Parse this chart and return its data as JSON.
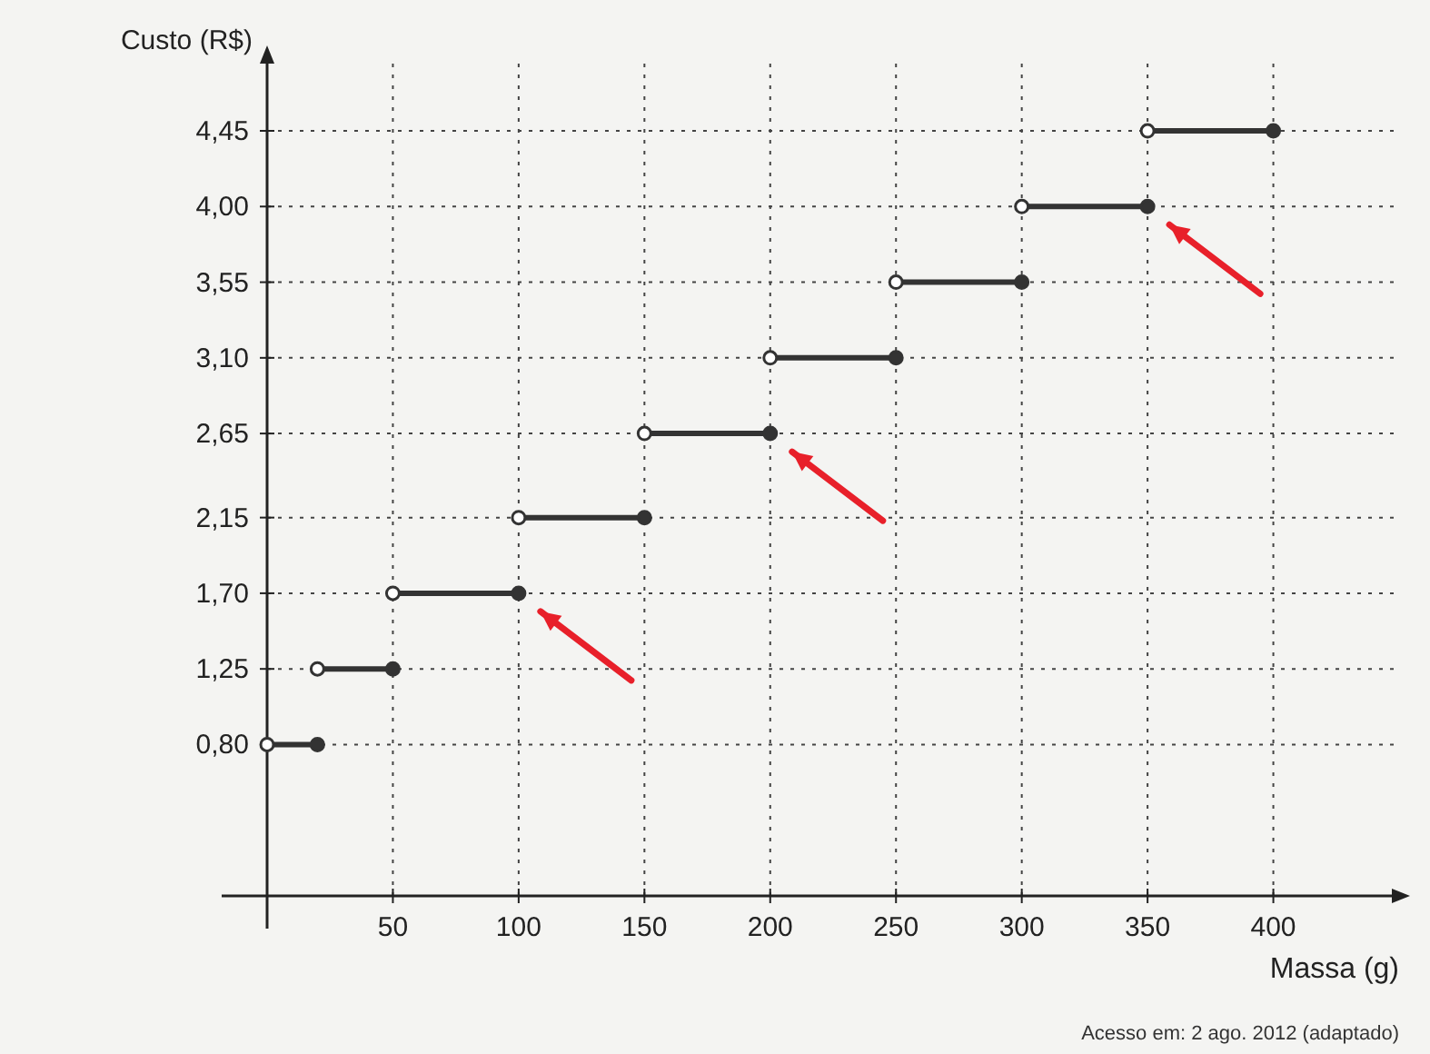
{
  "chart_data": {
    "type": "line",
    "xlabel": "Massa (g)",
    "ylabel": "Custo (R$)",
    "series": [
      {
        "color": "#333333",
        "x": [
          0,
          20
        ],
        "values": [
          0.8,
          0.8
        ]
      },
      {
        "color": "#333333",
        "x": [
          20,
          50
        ],
        "values": [
          1.25,
          1.25
        ]
      },
      {
        "color": "#333333",
        "x": [
          50,
          100
        ],
        "values": [
          1.7,
          1.7
        ]
      },
      {
        "color": "#333333",
        "x": [
          100,
          150
        ],
        "values": [
          2.15,
          2.15
        ]
      },
      {
        "color": "#333333",
        "x": [
          150,
          200
        ],
        "values": [
          2.65,
          2.65
        ]
      },
      {
        "color": "#333333",
        "x": [
          200,
          250
        ],
        "values": [
          3.1,
          3.1
        ]
      },
      {
        "color": "#333333",
        "x": [
          250,
          300
        ],
        "values": [
          3.55,
          3.55
        ]
      },
      {
        "color": "#333333",
        "x": [
          300,
          350
        ],
        "values": [
          4.0,
          4.0
        ]
      },
      {
        "color": "#333333",
        "x": [
          350,
          400
        ],
        "values": [
          4.45,
          4.45
        ]
      }
    ],
    "xlim": [
      0,
      450
    ],
    "xticks": [
      50,
      100,
      150,
      200,
      250,
      300,
      350,
      400
    ],
    "ylim": [
      -0.1,
      4.85
    ],
    "yticks": [
      {
        "value": 0.8,
        "label": "0,80"
      },
      {
        "value": 1.25,
        "label": "1,25"
      },
      {
        "value": 1.7,
        "label": "1,70"
      },
      {
        "value": 2.15,
        "label": "2,15"
      },
      {
        "value": 2.65,
        "label": "2,65"
      },
      {
        "value": 3.1,
        "label": "3,10"
      },
      {
        "value": 3.55,
        "label": "3,55"
      },
      {
        "value": 4.0,
        "label": "4,00"
      },
      {
        "value": 4.45,
        "label": "4,45"
      }
    ],
    "grid": true,
    "marker": "circle",
    "line_style": "solid",
    "annotations": [
      "Acesso em: 2 ago. 2012 (adaptado)"
    ]
  }
}
